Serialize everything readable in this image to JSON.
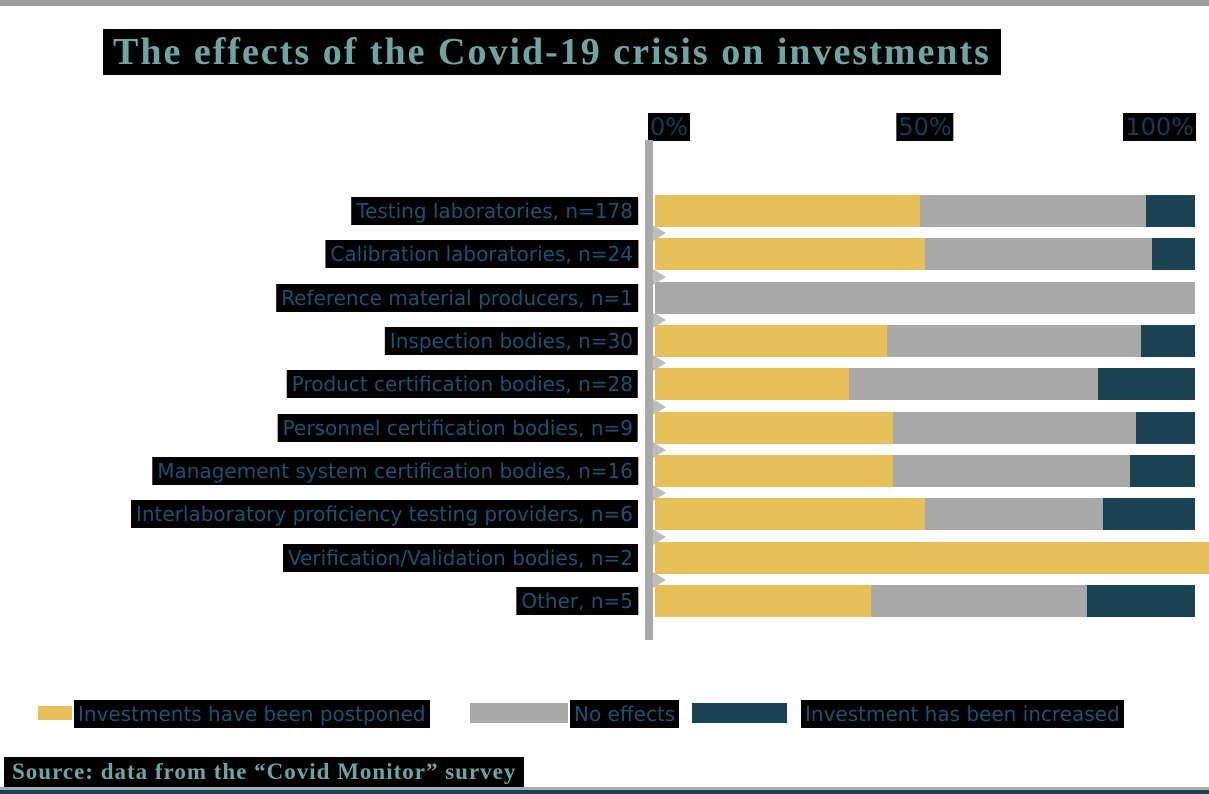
{
  "title": "The effects of the Covid-19 crisis on investments",
  "source": "Source: data from the “Covid Monitor” survey",
  "axis": {
    "ticks": [
      "0%",
      "50%",
      "100%"
    ]
  },
  "legend": [
    {
      "label": "Investments have been postponed",
      "color": "#E8C05A"
    },
    {
      "label": "No effects",
      "color": "#A8A8A8"
    },
    {
      "label": "Investment has been increased",
      "color": "#1C4354"
    }
  ],
  "colors": {
    "postponed": "#E8C05A",
    "no_effects": "#A8A8A8",
    "increased": "#1C4354",
    "axis_line": "#A9A9A9",
    "label_text": "#1A5270",
    "title_text": "#6FA5A1",
    "highlight_box": "#000000"
  },
  "chart_data": {
    "type": "bar",
    "orientation": "horizontal",
    "stacked": true,
    "title": "The effects of the Covid-19 crisis on investments",
    "xlim": [
      0,
      100
    ],
    "x_tick_labels": [
      "0%",
      "50%",
      "100%"
    ],
    "grid": false,
    "legend_position": "bottom",
    "categories": [
      "Testing laboratories, n=178",
      "Calibration laboratories, n=24",
      "Reference material producers, n=1",
      "Inspection bodies, n=30",
      "Product certification bodies, n=28",
      "Personnel certification bodies, n=9",
      "Management system certification bodies, n=16",
      "Interlaboratory proficiency testing providers, n=6",
      "Verification/Validation bodies, n=2",
      "Other, n=5"
    ],
    "series": [
      {
        "name": "Investments have been postponed",
        "color": "#E8C05A",
        "values": [
          49,
          50,
          0,
          43,
          36,
          44,
          44,
          50,
          100,
          40
        ]
      },
      {
        "name": "No effects",
        "color": "#A8A8A8",
        "values": [
          42,
          42,
          100,
          47,
          46,
          45,
          44,
          33,
          0,
          40
        ]
      },
      {
        "name": "Investment has been increased",
        "color": "#1C4354",
        "values": [
          9,
          8,
          0,
          10,
          18,
          11,
          12,
          17,
          0,
          20
        ]
      }
    ],
    "note": "Bar for Verification/Validation bodies is drawn slightly past the 100% axis edge."
  }
}
